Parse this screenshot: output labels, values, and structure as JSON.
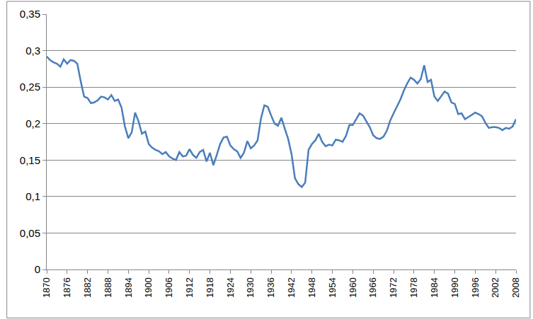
{
  "chart_data": {
    "type": "line",
    "color": "#4a7ebb",
    "grid": true,
    "x": [
      1870,
      1871,
      1872,
      1873,
      1874,
      1875,
      1876,
      1877,
      1878,
      1879,
      1880,
      1881,
      1882,
      1883,
      1884,
      1885,
      1886,
      1887,
      1888,
      1889,
      1890,
      1891,
      1892,
      1893,
      1894,
      1895,
      1896,
      1897,
      1898,
      1899,
      1900,
      1901,
      1902,
      1903,
      1904,
      1905,
      1906,
      1907,
      1908,
      1909,
      1910,
      1911,
      1912,
      1913,
      1914,
      1915,
      1916,
      1917,
      1918,
      1919,
      1920,
      1921,
      1922,
      1923,
      1924,
      1925,
      1926,
      1927,
      1928,
      1929,
      1930,
      1931,
      1932,
      1933,
      1934,
      1935,
      1936,
      1937,
      1938,
      1939,
      1940,
      1941,
      1942,
      1943,
      1944,
      1945,
      1946,
      1947,
      1948,
      1949,
      1950,
      1951,
      1952,
      1953,
      1954,
      1955,
      1956,
      1957,
      1958,
      1959,
      1960,
      1961,
      1962,
      1963,
      1964,
      1965,
      1966,
      1967,
      1968,
      1969,
      1970,
      1971,
      1972,
      1973,
      1974,
      1975,
      1976,
      1977,
      1978,
      1979,
      1980,
      1981,
      1982,
      1983,
      1984,
      1985,
      1986,
      1987,
      1988,
      1989,
      1990,
      1991,
      1992,
      1993,
      1994,
      1995,
      1996,
      1997,
      1998,
      1999,
      2000,
      2001,
      2002,
      2003,
      2004,
      2005,
      2006,
      2007,
      2008
    ],
    "values": [
      0.292,
      0.287,
      0.284,
      0.282,
      0.278,
      0.288,
      0.282,
      0.287,
      0.286,
      0.282,
      0.258,
      0.237,
      0.235,
      0.228,
      0.229,
      0.232,
      0.237,
      0.236,
      0.233,
      0.239,
      0.231,
      0.233,
      0.222,
      0.196,
      0.18,
      0.188,
      0.215,
      0.203,
      0.186,
      0.189,
      0.172,
      0.167,
      0.164,
      0.162,
      0.158,
      0.161,
      0.155,
      0.152,
      0.15,
      0.161,
      0.155,
      0.156,
      0.165,
      0.157,
      0.153,
      0.161,
      0.164,
      0.148,
      0.16,
      0.143,
      0.157,
      0.172,
      0.181,
      0.182,
      0.17,
      0.165,
      0.162,
      0.153,
      0.16,
      0.176,
      0.166,
      0.17,
      0.177,
      0.207,
      0.225,
      0.223,
      0.211,
      0.2,
      0.197,
      0.208,
      0.193,
      0.179,
      0.158,
      0.125,
      0.117,
      0.113,
      0.119,
      0.164,
      0.172,
      0.177,
      0.186,
      0.175,
      0.169,
      0.171,
      0.17,
      0.178,
      0.177,
      0.175,
      0.183,
      0.198,
      0.198,
      0.206,
      0.214,
      0.211,
      0.203,
      0.195,
      0.184,
      0.18,
      0.179,
      0.182,
      0.19,
      0.204,
      0.214,
      0.223,
      0.233,
      0.245,
      0.255,
      0.263,
      0.26,
      0.255,
      0.261,
      0.28,
      0.257,
      0.26,
      0.237,
      0.231,
      0.237,
      0.244,
      0.241,
      0.229,
      0.227,
      0.213,
      0.214,
      0.206,
      0.209,
      0.212,
      0.215,
      0.213,
      0.21,
      0.201,
      0.194,
      0.195,
      0.195,
      0.194,
      0.191,
      0.194,
      0.193,
      0.196,
      0.206
    ],
    "xlim": [
      1870,
      2008
    ],
    "xticks": [
      1870,
      1876,
      1882,
      1888,
      1894,
      1900,
      1906,
      1912,
      1918,
      1924,
      1930,
      1936,
      1942,
      1948,
      1954,
      1960,
      1966,
      1972,
      1978,
      1984,
      1990,
      1996,
      2002,
      2008
    ],
    "ylim": [
      0,
      0.35
    ],
    "yticks": [
      0,
      {
        "value": 0.05,
        "label": "0,05"
      },
      {
        "value": 0.1,
        "label": "0,1"
      },
      {
        "value": 0.15,
        "label": "0,15"
      },
      {
        "value": 0.2,
        "label": "0,2"
      },
      {
        "value": 0.25,
        "label": "0,25"
      },
      {
        "value": 0.3,
        "label": "0,3"
      },
      {
        "value": 0.35,
        "label": "0,35"
      }
    ]
  }
}
